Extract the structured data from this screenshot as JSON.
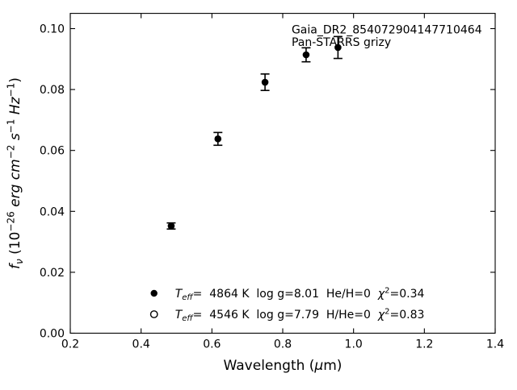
{
  "figure": {
    "background": "#ffffff",
    "foreground": "#000000"
  },
  "chart_data": {
    "type": "scatter",
    "title": "",
    "xlabel": "Wavelength (μm)",
    "ylabel": "f_ν (10^−26 erg cm^−2 s^−1 Hz^−1)",
    "xlabel_runs": [
      {
        "t": "Wavelength ("
      },
      {
        "t": "μ",
        "i": 1
      },
      {
        "t": "m)"
      }
    ],
    "ylabel_runs": [
      {
        "t": "f",
        "i": 1
      },
      {
        "t": "ν",
        "i": 1,
        "s": "sub"
      },
      {
        "t": " (10"
      },
      {
        "t": "−26",
        "s": "sup"
      },
      {
        "t": " "
      },
      {
        "t": "erg",
        "i": 1
      },
      {
        "t": " "
      },
      {
        "t": "cm",
        "i": 1
      },
      {
        "t": "−2",
        "s": "sup"
      },
      {
        "t": " "
      },
      {
        "t": "s",
        "i": 1
      },
      {
        "t": "−1",
        "s": "sup"
      },
      {
        "t": " "
      },
      {
        "t": "Hz",
        "i": 1
      },
      {
        "t": "−1",
        "s": "sup"
      },
      {
        "t": ")"
      }
    ],
    "xlim": [
      0.2,
      1.4
    ],
    "ylim": [
      0.0,
      0.105
    ],
    "grid": false,
    "tick_direction": "in",
    "mirror_ticks": true,
    "xticks": {
      "values": [
        0.2,
        0.4,
        0.6,
        0.8,
        1.0,
        1.2,
        1.4
      ],
      "labels": [
        "0.2",
        "0.4",
        "0.6",
        "0.8",
        "1.0",
        "1.2",
        "1.4"
      ]
    },
    "yticks": {
      "values": [
        0.0,
        0.02,
        0.04,
        0.06,
        0.08,
        0.1
      ],
      "labels": [
        "0.00",
        "0.02",
        "0.04",
        "0.06",
        "0.08",
        "0.10"
      ]
    },
    "series": [
      {
        "name": "Pan-STARRS grizy photometry (filled circles)",
        "marker": "filled-circle",
        "color": "#000000",
        "points": [
          {
            "x": 0.485,
            "y": 0.0352,
            "yerr": 0.001
          },
          {
            "x": 0.617,
            "y": 0.0638,
            "yerr": 0.0021
          },
          {
            "x": 0.75,
            "y": 0.0824,
            "yerr": 0.0027
          },
          {
            "x": 0.866,
            "y": 0.0914,
            "yerr": 0.0023
          },
          {
            "x": 0.956,
            "y": 0.0938,
            "yerr": 0.0036
          }
        ]
      }
    ],
    "annotation": {
      "lines": [
        "Gaia_DR2_854072904147710464",
        "Pan-STARRS grizy"
      ],
      "x": 0.825,
      "y": 0.0984
    },
    "legend": {
      "frame": false,
      "position": "lower-left-inside",
      "entries": [
        {
          "marker": "filled-circle",
          "label": "T_eff=  4864 K  log g=8.01  He/H=0  χ2=0.34",
          "runs": [
            {
              "t": "T",
              "i": 1
            },
            {
              "t": "eff",
              "i": 1,
              "s": "sub"
            },
            {
              "t": "=  4864 K  log g=8.01  He/H=0  "
            },
            {
              "t": "χ",
              "i": 1
            },
            {
              "t": "2",
              "s": "sup"
            },
            {
              "t": "=0.34"
            }
          ]
        },
        {
          "marker": "open-circle",
          "label": "T_eff=  4546 K  log g=7.79  H/He=0  χ2=0.83",
          "runs": [
            {
              "t": "T",
              "i": 1
            },
            {
              "t": "eff",
              "i": 1,
              "s": "sub"
            },
            {
              "t": "=  4546 K  log g=7.79  H/He=0  "
            },
            {
              "t": "χ",
              "i": 1
            },
            {
              "t": "2",
              "s": "sup"
            },
            {
              "t": "=0.83"
            }
          ]
        }
      ]
    }
  }
}
